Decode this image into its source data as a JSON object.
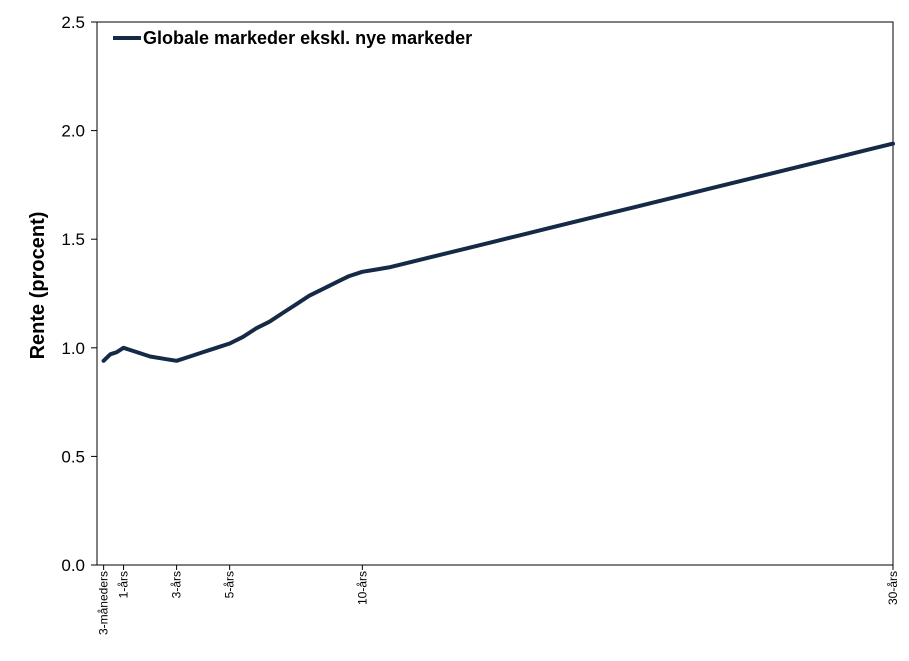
{
  "chart_data": {
    "type": "line",
    "title": "",
    "xlabel": "",
    "ylabel": "Rente (procent)",
    "ylim": [
      0,
      2.5
    ],
    "yticks": [
      "0.0",
      "0.5",
      "1.0",
      "1.5",
      "2.0",
      "2.5"
    ],
    "x_tick_labels": [
      {
        "x": 0.25,
        "label": "3-måneders"
      },
      {
        "x": 1,
        "label": "1-års"
      },
      {
        "x": 3,
        "label": "3-års"
      },
      {
        "x": 5,
        "label": "5-års"
      },
      {
        "x": 10,
        "label": "10-års"
      },
      {
        "x": 30,
        "label": "30-års"
      }
    ],
    "xlim": [
      0,
      30
    ],
    "grid": false,
    "legend_position": "top-left",
    "series": [
      {
        "name": "Globale markeder ekskl. nye markeder",
        "color": "#152a47",
        "x": [
          0.25,
          0.5,
          0.75,
          1,
          1.25,
          1.5,
          2,
          2.5,
          3,
          3.5,
          4,
          4.5,
          5,
          5.5,
          6,
          6.5,
          7,
          7.5,
          8,
          8.5,
          9,
          9.5,
          10,
          10.5,
          11,
          12,
          13,
          14,
          15,
          16,
          17,
          18,
          19,
          20,
          21,
          22,
          23,
          24,
          25,
          26,
          27,
          28,
          29,
          30
        ],
        "values": [
          0.94,
          0.97,
          0.98,
          1.0,
          0.99,
          0.98,
          0.96,
          0.95,
          0.94,
          0.96,
          0.98,
          1.0,
          1.02,
          1.05,
          1.09,
          1.12,
          1.16,
          1.2,
          1.24,
          1.27,
          1.3,
          1.33,
          1.35,
          1.36,
          1.37,
          1.4,
          1.43,
          1.46,
          1.49,
          1.52,
          1.55,
          1.58,
          1.61,
          1.64,
          1.67,
          1.7,
          1.73,
          1.76,
          1.79,
          1.82,
          1.85,
          1.88,
          1.91,
          1.94
        ]
      }
    ]
  }
}
